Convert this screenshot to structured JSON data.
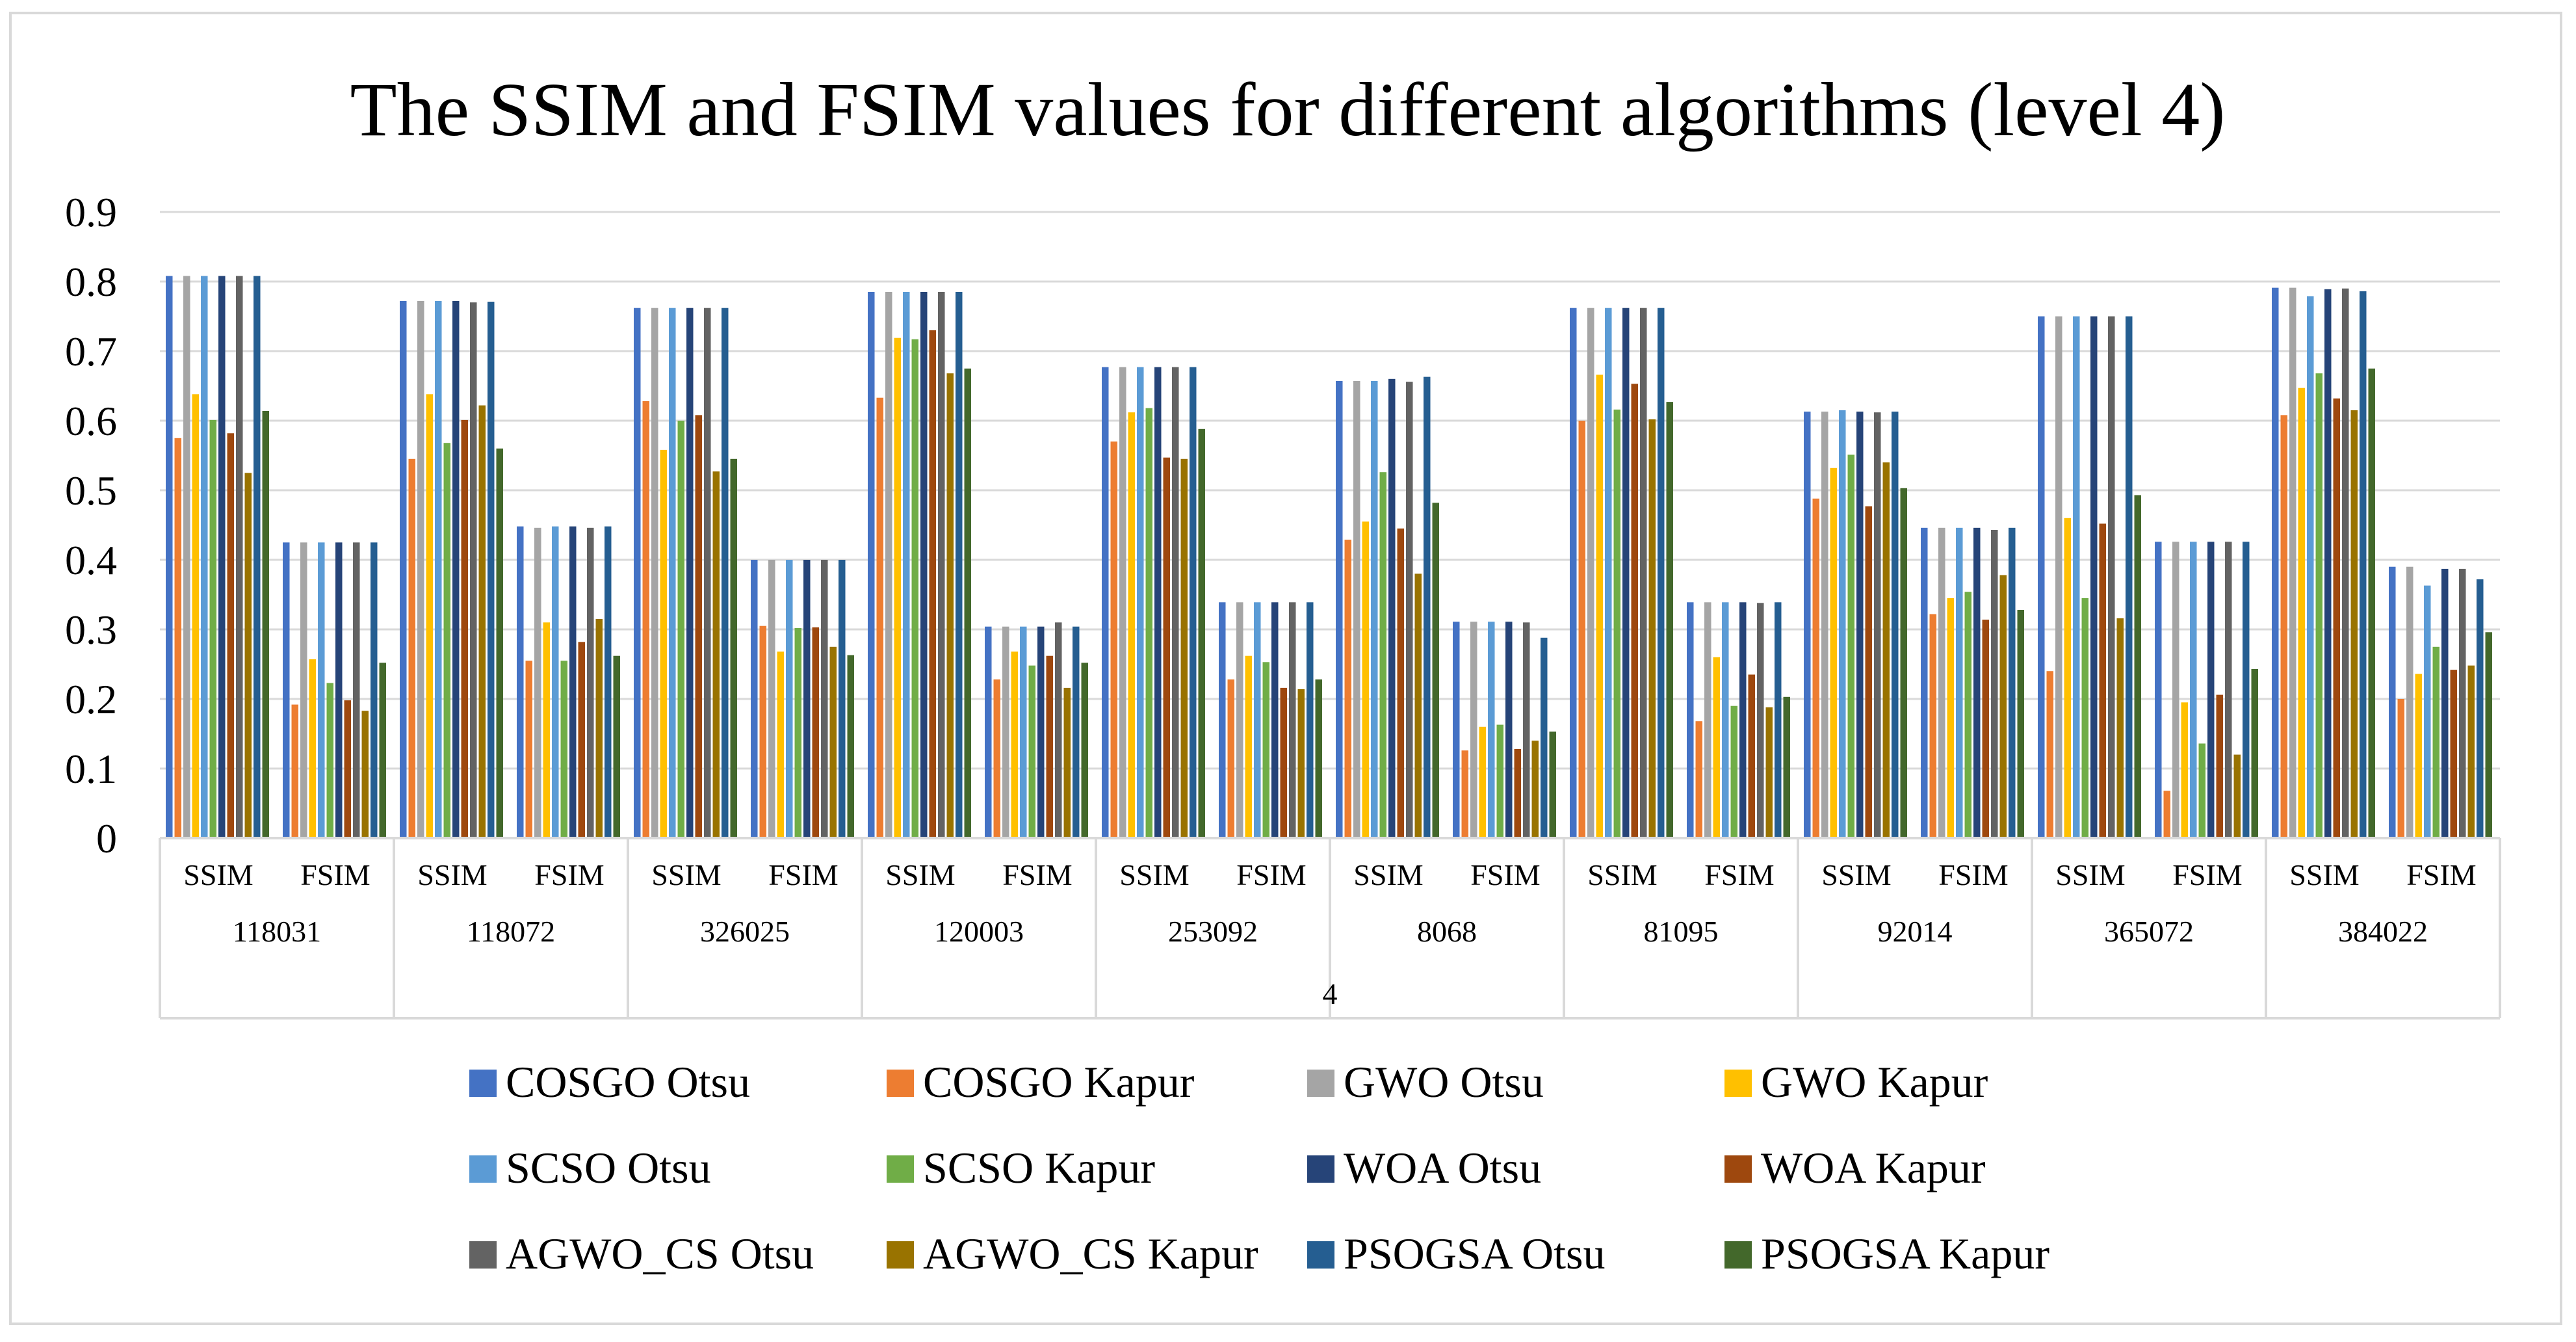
{
  "chart_data": {
    "type": "bar",
    "title": "The SSIM and FSIM values for different algorithms (level 4)",
    "xlabel": "",
    "ylabel": "",
    "ylim": [
      0,
      0.9
    ],
    "yticks": [
      "0",
      "0.1",
      "0.2",
      "0.3",
      "0.4",
      "0.5",
      "0.6",
      "0.7",
      "0.8",
      "0.9"
    ],
    "grid": true,
    "legend_position": "bottom",
    "top_level_label": "4",
    "groups": [
      "118031",
      "118072",
      "326025",
      "120003",
      "253092",
      "8068",
      "81095",
      "92014",
      "365072",
      "384022"
    ],
    "metrics": [
      "SSIM",
      "FSIM"
    ],
    "series": [
      {
        "name": "COSGO Otsu",
        "color": "#4472C4",
        "values": [
          0.808,
          0.425,
          0.772,
          0.448,
          0.762,
          0.4,
          0.785,
          0.304,
          0.677,
          0.339,
          0.657,
          0.311,
          0.762,
          0.339,
          0.613,
          0.446,
          0.75,
          0.426,
          0.791,
          0.39
        ]
      },
      {
        "name": "COSGO Kapur",
        "color": "#ED7D31",
        "values": [
          0.575,
          0.192,
          0.545,
          0.255,
          0.628,
          0.305,
          0.633,
          0.228,
          0.57,
          0.228,
          0.429,
          0.126,
          0.6,
          0.168,
          0.488,
          0.322,
          0.24,
          0.068,
          0.608,
          0.2
        ]
      },
      {
        "name": "GWO Otsu",
        "color": "#A5A5A5",
        "values": [
          0.808,
          0.425,
          0.772,
          0.446,
          0.762,
          0.4,
          0.785,
          0.304,
          0.677,
          0.339,
          0.657,
          0.311,
          0.762,
          0.339,
          0.613,
          0.446,
          0.75,
          0.426,
          0.791,
          0.39
        ]
      },
      {
        "name": "GWO Kapur",
        "color": "#FFC000",
        "values": [
          0.638,
          0.257,
          0.638,
          0.31,
          0.558,
          0.268,
          0.719,
          0.268,
          0.612,
          0.262,
          0.455,
          0.16,
          0.666,
          0.26,
          0.532,
          0.345,
          0.46,
          0.195,
          0.647,
          0.236
        ]
      },
      {
        "name": "SCSO Otsu",
        "color": "#5B9BD5",
        "values": [
          0.808,
          0.425,
          0.772,
          0.448,
          0.762,
          0.4,
          0.785,
          0.304,
          0.677,
          0.339,
          0.657,
          0.311,
          0.762,
          0.339,
          0.615,
          0.446,
          0.75,
          0.426,
          0.779,
          0.363
        ]
      },
      {
        "name": "SCSO Kapur",
        "color": "#70AD47",
        "values": [
          0.601,
          0.223,
          0.568,
          0.255,
          0.6,
          0.302,
          0.717,
          0.248,
          0.618,
          0.253,
          0.526,
          0.163,
          0.616,
          0.19,
          0.551,
          0.354,
          0.345,
          0.136,
          0.668,
          0.275
        ]
      },
      {
        "name": "WOA Otsu",
        "color": "#264478",
        "values": [
          0.808,
          0.425,
          0.772,
          0.448,
          0.762,
          0.4,
          0.785,
          0.304,
          0.677,
          0.339,
          0.66,
          0.311,
          0.762,
          0.339,
          0.613,
          0.446,
          0.75,
          0.426,
          0.789,
          0.387
        ]
      },
      {
        "name": "WOA Kapur",
        "color": "#9E480E",
        "values": [
          0.582,
          0.198,
          0.601,
          0.282,
          0.608,
          0.303,
          0.73,
          0.262,
          0.547,
          0.216,
          0.445,
          0.128,
          0.653,
          0.235,
          0.477,
          0.314,
          0.452,
          0.206,
          0.632,
          0.242
        ]
      },
      {
        "name": "AGWO_CS Otsu",
        "color": "#636363",
        "values": [
          0.808,
          0.425,
          0.77,
          0.446,
          0.762,
          0.4,
          0.785,
          0.31,
          0.677,
          0.339,
          0.656,
          0.31,
          0.762,
          0.338,
          0.612,
          0.443,
          0.75,
          0.426,
          0.79,
          0.387
        ]
      },
      {
        "name": "AGWO_CS Kapur",
        "color": "#997300",
        "values": [
          0.525,
          0.183,
          0.622,
          0.315,
          0.527,
          0.275,
          0.668,
          0.216,
          0.545,
          0.214,
          0.38,
          0.14,
          0.602,
          0.188,
          0.54,
          0.378,
          0.316,
          0.12,
          0.615,
          0.248
        ]
      },
      {
        "name": "PSOGSA Otsu",
        "color": "#255E91",
        "values": [
          0.808,
          0.425,
          0.771,
          0.448,
          0.762,
          0.4,
          0.785,
          0.304,
          0.677,
          0.339,
          0.663,
          0.288,
          0.762,
          0.339,
          0.613,
          0.446,
          0.75,
          0.426,
          0.786,
          0.372
        ]
      },
      {
        "name": "PSOGSA Kapur",
        "color": "#43682B",
        "values": [
          0.614,
          0.252,
          0.56,
          0.262,
          0.545,
          0.263,
          0.675,
          0.252,
          0.588,
          0.228,
          0.482,
          0.153,
          0.627,
          0.203,
          0.503,
          0.328,
          0.493,
          0.243,
          0.675,
          0.296
        ]
      }
    ]
  }
}
